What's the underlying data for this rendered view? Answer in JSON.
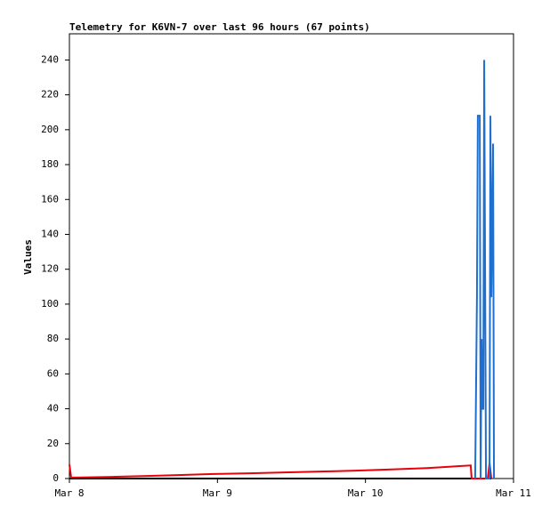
{
  "chart_data": {
    "type": "line",
    "title": "Telemetry for K6VN-7 over last 96 hours (67 points)",
    "y_label": "Values",
    "series": [
      {
        "color": "#000000",
        "x": [
          0,
          2.85
        ],
        "values": [
          0,
          0
        ]
      },
      {
        "color": "#e8000b",
        "x": [
          0,
          0.012,
          0.132,
          0.313,
          0.553,
          0.733,
          0.974,
          1.214,
          1.455,
          1.695,
          1.936,
          2.176,
          2.417,
          2.711,
          2.717,
          2.826,
          2.838,
          2.85
        ],
        "values": [
          8,
          0.5,
          0.7,
          1,
          1.5,
          2,
          2.6,
          3,
          3.5,
          4,
          4.5,
          5.2,
          6,
          7.5,
          0,
          0,
          9,
          0
        ]
      },
      {
        "color": "#1f6fd0",
        "x": [
          2.741,
          2.753,
          2.759,
          2.772,
          2.778,
          2.784,
          2.79,
          2.796,
          2.802,
          2.808,
          2.814,
          2.838,
          2.844,
          2.85,
          2.862,
          2.868
        ],
        "values": [
          0,
          104,
          208,
          208,
          0,
          80,
          40,
          40,
          240,
          120,
          0,
          0,
          208,
          104,
          192,
          0
        ]
      }
    ],
    "xlim": [
      0,
      3
    ],
    "xticks": [
      {
        "value": 0,
        "label": "Mar 8"
      },
      {
        "value": 1,
        "label": "Mar 9"
      },
      {
        "value": 2,
        "label": "Mar 10"
      },
      {
        "value": 3,
        "label": "Mar 11"
      }
    ],
    "ylim": [
      0,
      255
    ],
    "yticks": [
      0,
      20,
      40,
      60,
      80,
      100,
      120,
      140,
      160,
      180,
      200,
      220,
      240
    ]
  }
}
